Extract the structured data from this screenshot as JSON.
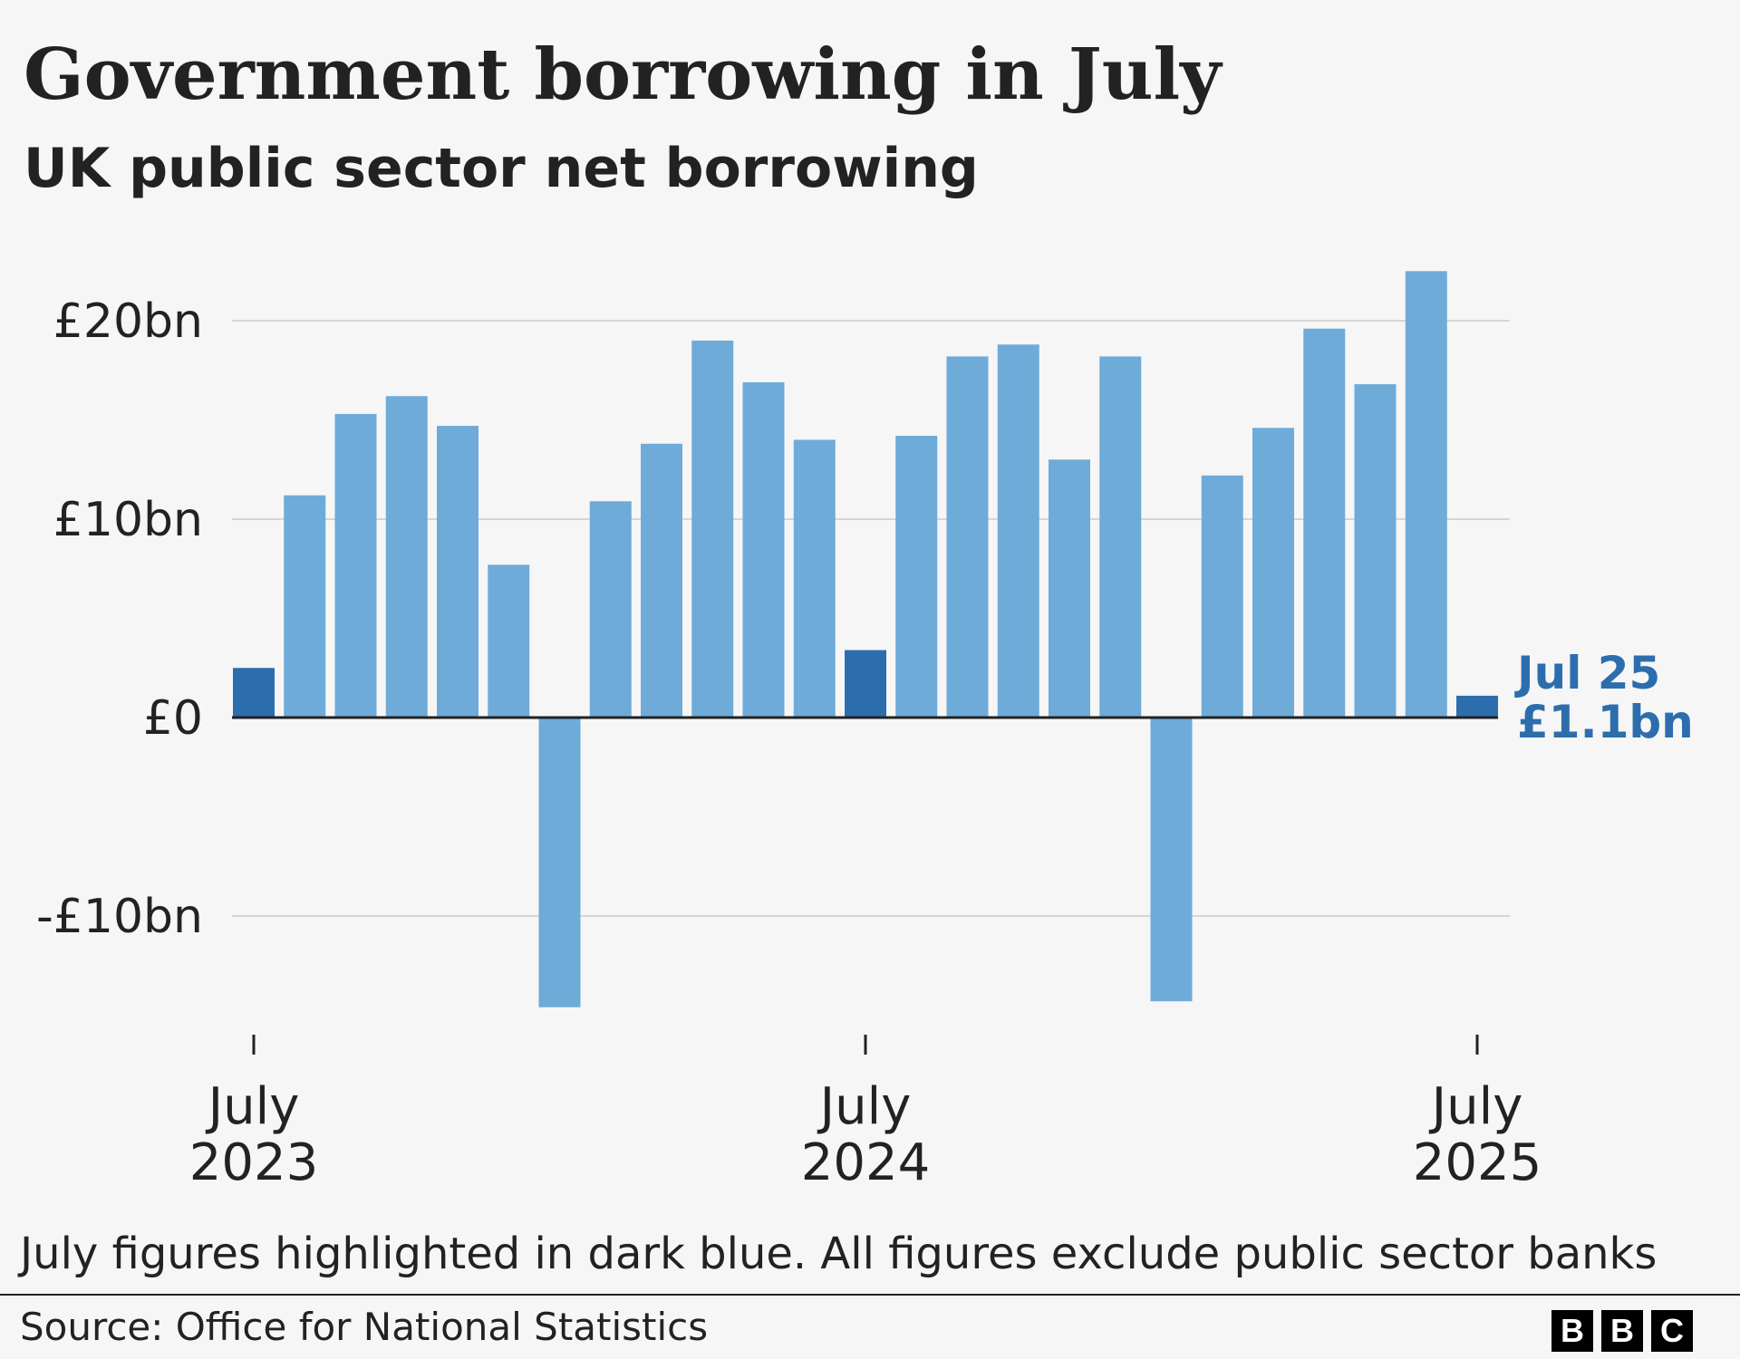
{
  "chart_data": {
    "type": "bar",
    "title": "Government borrowing in July",
    "subtitle": "UK public sector net borrowing",
    "ylabel": "£bn",
    "ylim": [
      -15,
      23
    ],
    "y_ticks": [
      {
        "value": 20,
        "label": "£20bn"
      },
      {
        "value": 10,
        "label": "£10bn"
      },
      {
        "value": 0,
        "label": "£0"
      },
      {
        "value": -10,
        "label": "-£10bn"
      }
    ],
    "x_ticks": [
      {
        "index": 0,
        "line1": "July",
        "line2": "2023"
      },
      {
        "index": 12,
        "line1": "July",
        "line2": "2024"
      },
      {
        "index": 24,
        "line1": "July",
        "line2": "2025"
      }
    ],
    "categories": [
      "Jul 23",
      "Aug 23",
      "Sep 23",
      "Oct 23",
      "Nov 23",
      "Dec 23",
      "Jan 24",
      "Feb 24",
      "Mar 24",
      "Apr 24",
      "May 24",
      "Jun 24",
      "Jul 24",
      "Aug 24",
      "Sep 24",
      "Oct 24",
      "Nov 24",
      "Dec 24",
      "Jan 25",
      "Feb 25",
      "Mar 25",
      "Apr 25",
      "May 25",
      "Jun 25",
      "Jul 25"
    ],
    "values": [
      2.5,
      11.2,
      15.3,
      16.2,
      14.7,
      7.7,
      -14.6,
      10.9,
      13.8,
      19.0,
      16.9,
      14.0,
      3.4,
      14.2,
      18.2,
      18.8,
      13.0,
      18.2,
      -14.3,
      12.2,
      14.6,
      19.6,
      16.8,
      22.5,
      1.1
    ],
    "highlight_months": [
      "Jul 23",
      "Jul 24",
      "Jul 25"
    ],
    "colors": {
      "highlight": "#2c6ead",
      "bar": "#6fabd9",
      "gridline": "#d5d5d5",
      "zero_line": "#222222",
      "annotation": "#2c6ead"
    },
    "annotation": {
      "label": "Jul 25",
      "value_label": "£1.1bn"
    }
  },
  "footnote": "July figures highlighted in dark blue. All figures exclude public sector banks",
  "source": "Source: Office for National Statistics",
  "logo": [
    "B",
    "B",
    "C"
  ]
}
